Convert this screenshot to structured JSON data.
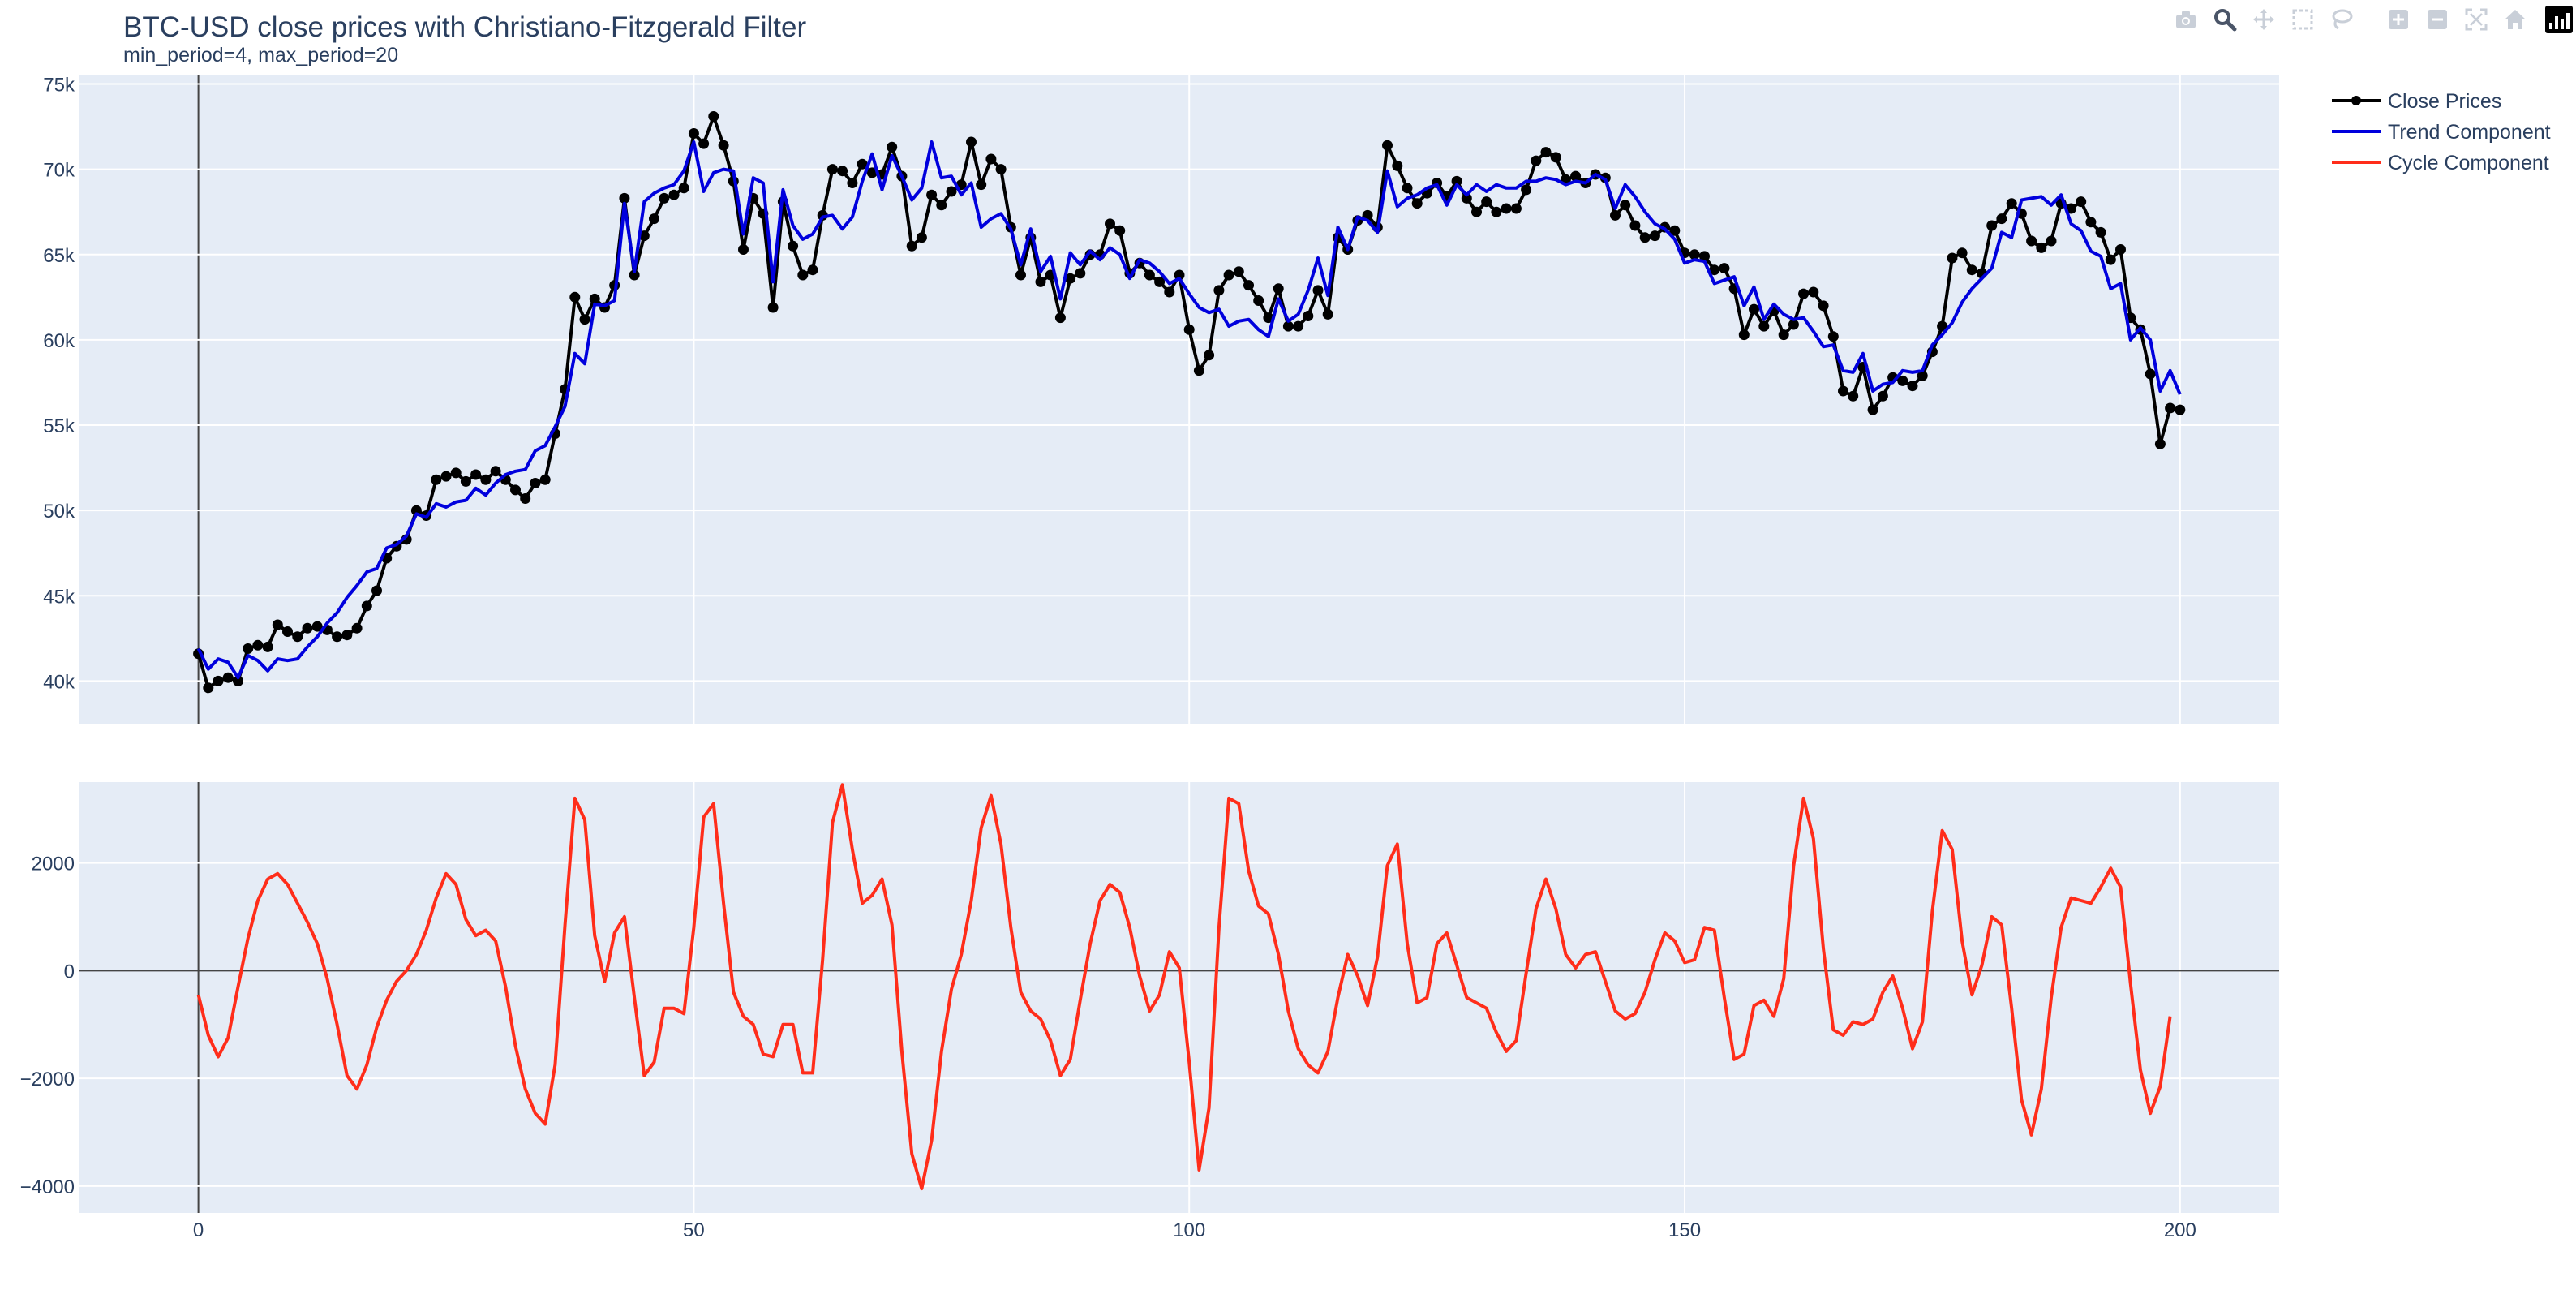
{
  "chart_data": {
    "type": "line",
    "title": "BTC-USD close prices with Christiano-Fitzgerald Filter",
    "subtitle": "min_period=4, max_period=20",
    "legend_position": "top-right",
    "grid": true,
    "subplots": [
      {
        "name": "prices",
        "ylim": [
          37500,
          75500
        ],
        "yticks": [
          40000,
          45000,
          50000,
          55000,
          60000,
          65000,
          70000,
          75000
        ],
        "ytick_labels": [
          "40k",
          "45k",
          "50k",
          "55k",
          "60k",
          "65k",
          "70k",
          "75k"
        ]
      },
      {
        "name": "cycle",
        "ylim": [
          -4500,
          3500
        ],
        "yticks": [
          -4000,
          -2000,
          0,
          2000
        ],
        "ytick_labels": [
          "−4000",
          "−2000",
          "0",
          "2000"
        ]
      }
    ],
    "xlim": [
      -12,
      210
    ],
    "xticks": [
      0,
      50,
      100,
      150,
      200
    ],
    "xtick_labels": [
      "0",
      "50",
      "100",
      "150",
      "200"
    ],
    "series": [
      {
        "name": "Close Prices",
        "color": "#000000",
        "mode": "lines+markers",
        "subplot": 0,
        "x_start": 0,
        "values": [
          41600,
          39600,
          40000,
          40200,
          40000,
          41900,
          42100,
          42000,
          43300,
          42900,
          42600,
          43100,
          43200,
          43000,
          42600,
          42700,
          43100,
          44400,
          45300,
          47200,
          47900,
          48300,
          50000,
          49700,
          51800,
          52000,
          52200,
          51700,
          52100,
          51800,
          52300,
          51800,
          51200,
          50700,
          51600,
          51800,
          54500,
          57100,
          62500,
          61200,
          62400,
          61900,
          63200,
          68300,
          63800,
          66100,
          67100,
          68300,
          68500,
          68900,
          72100,
          71500,
          73100,
          71400,
          69300,
          65300,
          68300,
          67400,
          61900,
          68100,
          65500,
          63800,
          64100,
          67300,
          70000,
          69900,
          69200,
          70300,
          69800,
          69700,
          71300,
          69600,
          65500,
          66000,
          68500,
          67900,
          68700,
          69100,
          71600,
          69100,
          70600,
          70000,
          66600,
          63800,
          66000,
          63400,
          63800,
          61300,
          63600,
          63900,
          65000,
          65000,
          66800,
          66400,
          63900,
          64500,
          63800,
          63400,
          62800,
          63800,
          60600,
          58200,
          59100,
          62900,
          63800,
          64000,
          63200,
          62300,
          61300,
          63000,
          60800,
          60800,
          61400,
          62900,
          61500,
          66000,
          65300,
          67000,
          67300,
          66600,
          71400,
          70200,
          68900,
          68000,
          68600,
          69200,
          68400,
          69300,
          68300,
          67500,
          68100,
          67500,
          67700,
          67700,
          68800,
          70500,
          71000,
          70700,
          69400,
          69600,
          69200,
          69700,
          69500,
          67300,
          67900,
          66700,
          66000,
          66100,
          66600,
          66400,
          65100,
          65000,
          64900,
          64100,
          64200,
          63000,
          60300,
          61800,
          60800,
          61700,
          60300,
          60900,
          62700,
          62800,
          62000,
          60200,
          57000,
          56700,
          58400,
          55900,
          56700,
          57800,
          57600,
          57300,
          57900,
          59300,
          60800,
          64800,
          65100,
          64100,
          63900,
          66700,
          67100,
          68000,
          67400,
          65800,
          65400,
          65800,
          68000,
          67700,
          68100,
          66900,
          66300,
          64700,
          65300,
          61300,
          60600,
          58000,
          53900,
          56000,
          55900
        ]
      },
      {
        "name": "Trend Component",
        "color": "#0000dd",
        "mode": "lines",
        "subplot": 0,
        "x_start": 0,
        "values": [
          41900,
          40700,
          41300,
          41100,
          40200,
          41500,
          41200,
          40600,
          41300,
          41200,
          41300,
          42000,
          42600,
          43400,
          44000,
          44900,
          45600,
          46400,
          46600,
          47800,
          48000,
          48500,
          49800,
          49600,
          50400,
          50200,
          50500,
          50600,
          51300,
          50900,
          51600,
          52100,
          52300,
          52400,
          53500,
          53800,
          54900,
          56100,
          59200,
          58600,
          62100,
          62000,
          62300,
          68000,
          64000,
          68100,
          68600,
          68900,
          69100,
          69900,
          71600,
          68700,
          69800,
          70000,
          69900,
          66200,
          69500,
          69200,
          63400,
          68800,
          66700,
          65900,
          66200,
          67200,
          67300,
          66500,
          67200,
          69300,
          70900,
          68800,
          70800,
          69600,
          68200,
          68900,
          71600,
          69500,
          69600,
          68500,
          69200,
          66600,
          67100,
          67400,
          66500,
          64400,
          66500,
          64000,
          64900,
          62400,
          65100,
          64400,
          65200,
          64700,
          65400,
          65000,
          63600,
          64700,
          64500,
          64000,
          63300,
          63600,
          62700,
          61900,
          61600,
          61800,
          60800,
          61100,
          61200,
          60600,
          60200,
          62400,
          61100,
          61500,
          62900,
          64800,
          62600,
          66600,
          65300,
          67200,
          67000,
          66300,
          69900,
          67800,
          68300,
          68500,
          68900,
          69100,
          67900,
          69100,
          68500,
          69100,
          68700,
          69100,
          68900,
          68900,
          69300,
          69300,
          69500,
          69400,
          69100,
          69300,
          69200,
          69700,
          69400,
          67700,
          69100,
          68400,
          67500,
          66800,
          66500,
          65900,
          64500,
          64700,
          64600,
          63300,
          63500,
          63700,
          62000,
          63100,
          61200,
          62100,
          61500,
          61200,
          61300,
          60500,
          59600,
          59700,
          58200,
          58100,
          59200,
          57000,
          57400,
          57500,
          58200,
          58100,
          58200,
          59700,
          60300,
          61000,
          62200,
          63000,
          63600,
          64200,
          66300,
          66000,
          68200,
          68300,
          68400,
          67900,
          68500,
          66800,
          66400,
          65200,
          64900,
          63000,
          63300,
          60000,
          60700,
          60000,
          57000,
          58200,
          56800
        ]
      },
      {
        "name": "Cycle Component",
        "color": "#ff2d1a",
        "mode": "lines",
        "subplot": 1,
        "x_start": 0,
        "values": [
          -450,
          -1200,
          -1600,
          -1250,
          -300,
          600,
          1300,
          1700,
          1800,
          1600,
          1250,
          900,
          500,
          -150,
          -1000,
          -1950,
          -2200,
          -1750,
          -1050,
          -550,
          -200,
          0,
          300,
          750,
          1350,
          1800,
          1600,
          950,
          650,
          750,
          550,
          -300,
          -1400,
          -2200,
          -2650,
          -2850,
          -1750,
          850,
          3200,
          2800,
          650,
          -200,
          700,
          1000,
          -500,
          -1950,
          -1700,
          -700,
          -700,
          -800,
          800,
          2850,
          3100,
          1250,
          -400,
          -850,
          -1000,
          -1550,
          -1600,
          -1000,
          -1000,
          -1900,
          -1900,
          200,
          2750,
          3450,
          2250,
          1250,
          1400,
          1700,
          850,
          -1500,
          -3400,
          -4050,
          -3150,
          -1500,
          -350,
          300,
          1300,
          2650,
          3250,
          2350,
          800,
          -400,
          -750,
          -900,
          -1300,
          -1950,
          -1650,
          -550,
          500,
          1300,
          1600,
          1450,
          800,
          -100,
          -750,
          -450,
          350,
          50,
          -1700,
          -3700,
          -2550,
          800,
          3200,
          3100,
          1850,
          1200,
          1050,
          300,
          -750,
          -1450,
          -1750,
          -1900,
          -1500,
          -500,
          300,
          -100,
          -650,
          250,
          1950,
          2350,
          500,
          -600,
          -500,
          500,
          700,
          100,
          -500,
          -600,
          -700,
          -1150,
          -1500,
          -1300,
          -50,
          1150,
          1700,
          1150,
          300,
          50,
          300,
          350,
          -200,
          -750,
          -900,
          -800,
          -400,
          200,
          700,
          550,
          150,
          200,
          800,
          750,
          -500,
          -1650,
          -1550,
          -650,
          -550,
          -850,
          -150,
          1950,
          3200,
          2450,
          400,
          -1100,
          -1200,
          -950,
          -1000,
          -900,
          -400,
          -100,
          -700,
          -1450,
          -950,
          1100,
          2600,
          2250,
          550,
          -450,
          100,
          1000,
          850,
          -700,
          -2400,
          -3050,
          -2200,
          -500,
          800,
          1350,
          1300,
          1250,
          1550,
          1900,
          1550,
          -250,
          -1850,
          -2650,
          -2150,
          -850
        ]
      }
    ]
  },
  "modebar": {
    "icons": [
      "camera-icon",
      "zoom-icon",
      "pan-icon",
      "box-select-icon",
      "lasso-icon",
      "zoom-in-icon",
      "zoom-out-icon",
      "autoscale-icon",
      "reset-axes-icon"
    ]
  }
}
